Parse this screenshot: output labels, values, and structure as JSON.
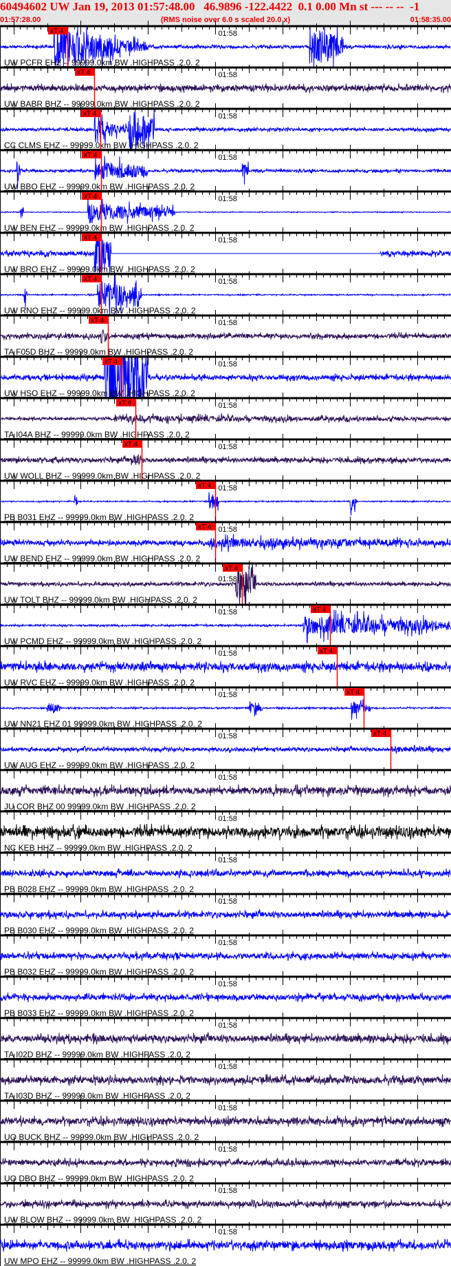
{
  "header": {
    "title": "60494602 UW Jan 19, 2013 01:57:48.00   46.9896 -122.4422  0.1 0.00 Mn st --- -- --  -1",
    "start_time": "01:57:28.00",
    "note": "(RMS noise over 6.0 s scaled 20.0 x)",
    "end_time": "01:58:35.00"
  },
  "colors": {
    "header_text": "#f00000",
    "header_bg": "#e6e6e6",
    "pick": "#ff0000",
    "axis": "#000000"
  },
  "chart_data": {
    "type": "line",
    "subtype": "seismogram-record-section",
    "x_range_s": [
      0,
      67
    ],
    "x_start": "01:57:28.00",
    "x_end": "01:58:35.00",
    "minute_tick_label": "01:58",
    "minute_tick_s": 32,
    "tick_interval_s": 1,
    "pick_label": "xT 4",
    "traces": [
      {
        "label": "UW PCFR EHZ -- 99999.0km BW .HIGHPASS .2.0. 2",
        "color": "#0000ff",
        "pick_s": 10.0,
        "noise": 0.08,
        "bursts": [
          [
            8,
            17,
            1.2
          ],
          [
            17,
            22,
            0.45
          ],
          [
            46,
            51,
            1.2
          ]
        ]
      },
      {
        "label": "UW BABR BHZ -- 99999.0km BW .HIGHPASS .2.0. 2",
        "color": "#2a1055",
        "pick_s": 14.0,
        "noise": 0.15,
        "bursts": []
      },
      {
        "label": "CC CLMS EHZ -- 99999.0km BW .HIGHPASS .2.0. 2",
        "color": "#0000ff",
        "pick_s": 14.9,
        "noise": 0.08,
        "bursts": [
          [
            14,
            16.5,
            0.9
          ],
          [
            16.5,
            19,
            0.35
          ],
          [
            19,
            23,
            1.3
          ]
        ]
      },
      {
        "label": "UW BBO EHZ -- 99999.0km BW .HIGHPASS .2.0. 2",
        "color": "#0000ff",
        "pick_s": 15.0,
        "noise": 0.07,
        "bursts": [
          [
            14,
            22,
            0.6
          ],
          [
            2.5,
            3,
            0.7
          ],
          [
            36,
            37,
            0.5
          ]
        ]
      },
      {
        "label": "UW BEN EHZ -- 99999.0km BW .HIGHPASS .2.0. 2",
        "color": "#0000ff",
        "pick_s": 15.0,
        "noise": 0.02,
        "bursts": [
          [
            13,
            26,
            0.5
          ],
          [
            3,
            3.5,
            0.5
          ]
        ]
      },
      {
        "label": "UW BRO EHZ -- 99999.0km BW .HIGHPASS .2.0. 2",
        "color": "#0000ff",
        "pick_s": 15.0,
        "noise": 0.12,
        "bursts": [
          [
            14,
            16.5,
            1.5
          ]
        ],
        "flat": [
          16.5,
          56.5
        ]
      },
      {
        "label": "UW RNO EHZ -- 99999.0km BW .HIGHPASS .2.0. 2",
        "color": "#0000ff",
        "pick_s": 15.0,
        "noise": 0.03,
        "bursts": [
          [
            14.5,
            21,
            0.9
          ],
          [
            3.5,
            4,
            0.6
          ]
        ]
      },
      {
        "label": "TA F05D BHZ -- 99999.0km BW .HIGHPASS .2.0. 2",
        "color": "#2a1055",
        "pick_s": 16.0,
        "noise": 0.12,
        "bursts": [
          [
            15,
            16,
            0.5
          ]
        ]
      },
      {
        "label": "UW HSO EHZ -- 99999.0km BW .HIGHPASS .2.0. 2",
        "color": "#0000ff",
        "pick_s": 18.1,
        "noise": 0.13,
        "bursts": [
          [
            15.5,
            22,
            3.0
          ]
        ]
      },
      {
        "label": "TA I04A BHZ -- 99999.0km BW .HIGHPASS .2.0. 2",
        "color": "#2a1055",
        "pick_s": 20.1,
        "noise": 0.08,
        "bursts": [
          [
            17,
            67,
            0.18
          ]
        ]
      },
      {
        "label": "UW WOLL BHZ -- 99999.0km BW .HIGHPASS .2.0. 2",
        "color": "#2a1055",
        "pick_s": 21.0,
        "noise": 0.12,
        "bursts": [
          [
            19.5,
            21,
            0.4
          ]
        ]
      },
      {
        "label": "PB B031 EHZ -- 99999.0km BW .HIGHPASS .2.0. 2",
        "color": "#0000ff",
        "pick_s": 32.0,
        "noise": 0.03,
        "bursts": [
          [
            31,
            32.5,
            0.6
          ],
          [
            52,
            53,
            0.5
          ],
          [
            11,
            11.5,
            0.4
          ]
        ]
      },
      {
        "label": "UW BEND EHZ -- 99999.0km BW .HIGHPASS .2.0. 2",
        "color": "#0000ff",
        "pick_s": 32.0,
        "noise": 0.12,
        "bursts": [
          [
            31,
            67,
            0.3
          ]
        ]
      },
      {
        "label": "UW TOLT BHZ -- 99999.0km BW .HIGHPASS .2.0. 2",
        "color": "#2a1055",
        "pick_s": 36.0,
        "noise": 0.09,
        "bursts": [
          [
            35,
            38,
            1.1
          ]
        ]
      },
      {
        "label": "UW PCMD EHZ -- 99999.0km BW .HIGHPASS .2.0. 2",
        "color": "#0000ff",
        "pick_s": 49.0,
        "noise": 0.05,
        "bursts": [
          [
            45,
            67,
            0.55
          ]
        ]
      },
      {
        "label": "UW RVC EHZ -- 99999.0km BW .HIGHPASS .2.0. 2",
        "color": "#0000ff",
        "pick_s": 50.0,
        "noise": 0.2,
        "bursts": []
      },
      {
        "label": "UW NN21 EHZ 01 99999.0km BW .HIGHPASS .2.0. 2",
        "color": "#0000ff",
        "pick_s": 54.0,
        "noise": 0.04,
        "bursts": [
          [
            52,
            55,
            0.4
          ],
          [
            7,
            9,
            0.35
          ],
          [
            37,
            39,
            0.35
          ]
        ]
      },
      {
        "label": "UW AUG EHZ -- 99999.0km BW .HIGHPASS .2.0. 2",
        "color": "#0000ff",
        "pick_s": 58.0,
        "noise": 0.1,
        "bursts": [
          [
            58,
            67,
            0.18
          ]
        ]
      },
      {
        "label": "JU COR BHZ 00 99999.0km BW .HIGHPASS .2.0. 2",
        "color": "#2a1055",
        "pick_s": null,
        "noise": 0.2,
        "bursts": []
      },
      {
        "label": "NC KEB HHZ -- 99999.0km BW .HIGHPASS .2.0. 2",
        "color": "#000000",
        "pick_s": null,
        "noise": 0.25,
        "bursts": []
      },
      {
        "label": "PB B028 EHZ -- 99999.0km BW .HIGHPASS .2.0. 2",
        "color": "#0000ff",
        "pick_s": null,
        "noise": 0.15,
        "bursts": []
      },
      {
        "label": "PB B030 EHZ -- 99999.0km BW .HIGHPASS .2.0. 2",
        "color": "#0000ff",
        "pick_s": null,
        "noise": 0.15,
        "bursts": []
      },
      {
        "label": "PB B032 EHZ -- 99999.0km BW .HIGHPASS .2.0. 2",
        "color": "#0000ff",
        "pick_s": null,
        "noise": 0.15,
        "bursts": []
      },
      {
        "label": "PB B033 EHZ -- 99999.0km BW .HIGHPASS .2.0. 2",
        "color": "#0000ff",
        "pick_s": null,
        "noise": 0.15,
        "bursts": []
      },
      {
        "label": "TA I02D BHZ -- 99999.0km BW .HIGHPASS .2.0. 2",
        "color": "#2a1055",
        "pick_s": null,
        "noise": 0.18,
        "bursts": []
      },
      {
        "label": "TA I03D BHZ -- 99999.0km BW .HIGHPASS .2.0. 2",
        "color": "#2a1055",
        "pick_s": null,
        "noise": 0.18,
        "bursts": []
      },
      {
        "label": "UO BUCK BHZ -- 99999.0km BW .HIGHPASS .2.0. 2",
        "color": "#2a1055",
        "pick_s": null,
        "noise": 0.18,
        "bursts": []
      },
      {
        "label": "UO DBO BHZ -- 99999.0km BW .HIGHPASS .2.0. 2",
        "color": "#2a1055",
        "pick_s": null,
        "noise": 0.15,
        "bursts": []
      },
      {
        "label": "UW BLOW BHZ -- 99999.0km BW .HIGHPASS .2.0. 2",
        "color": "#2a1055",
        "pick_s": null,
        "noise": 0.15,
        "bursts": []
      },
      {
        "label": "UW MPO EHZ -- 99999.0km BW .HIGHPASS .2.0. 2",
        "color": "#0000ff",
        "pick_s": null,
        "noise": 0.2,
        "bursts": []
      }
    ]
  }
}
